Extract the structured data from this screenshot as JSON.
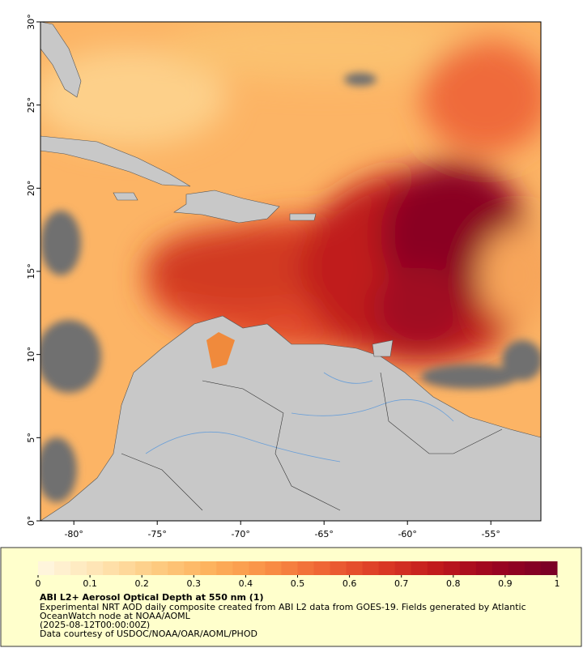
{
  "map": {
    "xlim": [
      -82,
      -52
    ],
    "ylim": [
      0,
      30
    ],
    "xticks": [
      {
        "value": -80,
        "label": "-80°"
      },
      {
        "value": -75,
        "label": "-75°"
      },
      {
        "value": -70,
        "label": "-70°"
      },
      {
        "value": -65,
        "label": "-65°"
      },
      {
        "value": -60,
        "label": "-60°"
      },
      {
        "value": -55,
        "label": "-55°"
      }
    ],
    "yticks": [
      {
        "value": 0,
        "label": "0°"
      },
      {
        "value": 5,
        "label": "5°"
      },
      {
        "value": 10,
        "label": "10°"
      },
      {
        "value": 15,
        "label": "15°"
      },
      {
        "value": 20,
        "label": "20°"
      },
      {
        "value": 25,
        "label": "25°"
      },
      {
        "value": 30,
        "label": "30°"
      }
    ]
  },
  "colorbar": {
    "lim": [
      0,
      1
    ],
    "ticks": [
      0,
      0.1,
      0.2,
      0.3,
      0.4,
      0.5,
      0.6,
      0.7,
      0.8,
      0.9,
      1
    ],
    "colors": [
      "#fff5dc",
      "#fee3b0",
      "#fdcb80",
      "#fdb05a",
      "#f98e45",
      "#ee6334",
      "#dc3a25",
      "#c01a1c",
      "#9c0420",
      "#7c0025"
    ]
  },
  "caption": {
    "title": "ABI L2+ Aerosol Optical Depth at 550 nm (1)",
    "lines": [
      "Experimental NRT AOD daily composite created from ABI L2 data from GOES-19. Fields generated by Atlantic",
      "OceanWatch node at NOAA/AOML",
      "(2025-08-12T00:00:00Z)",
      "Data courtesy of USDOC/NOAA/OAR/AOML/PHOD"
    ]
  }
}
